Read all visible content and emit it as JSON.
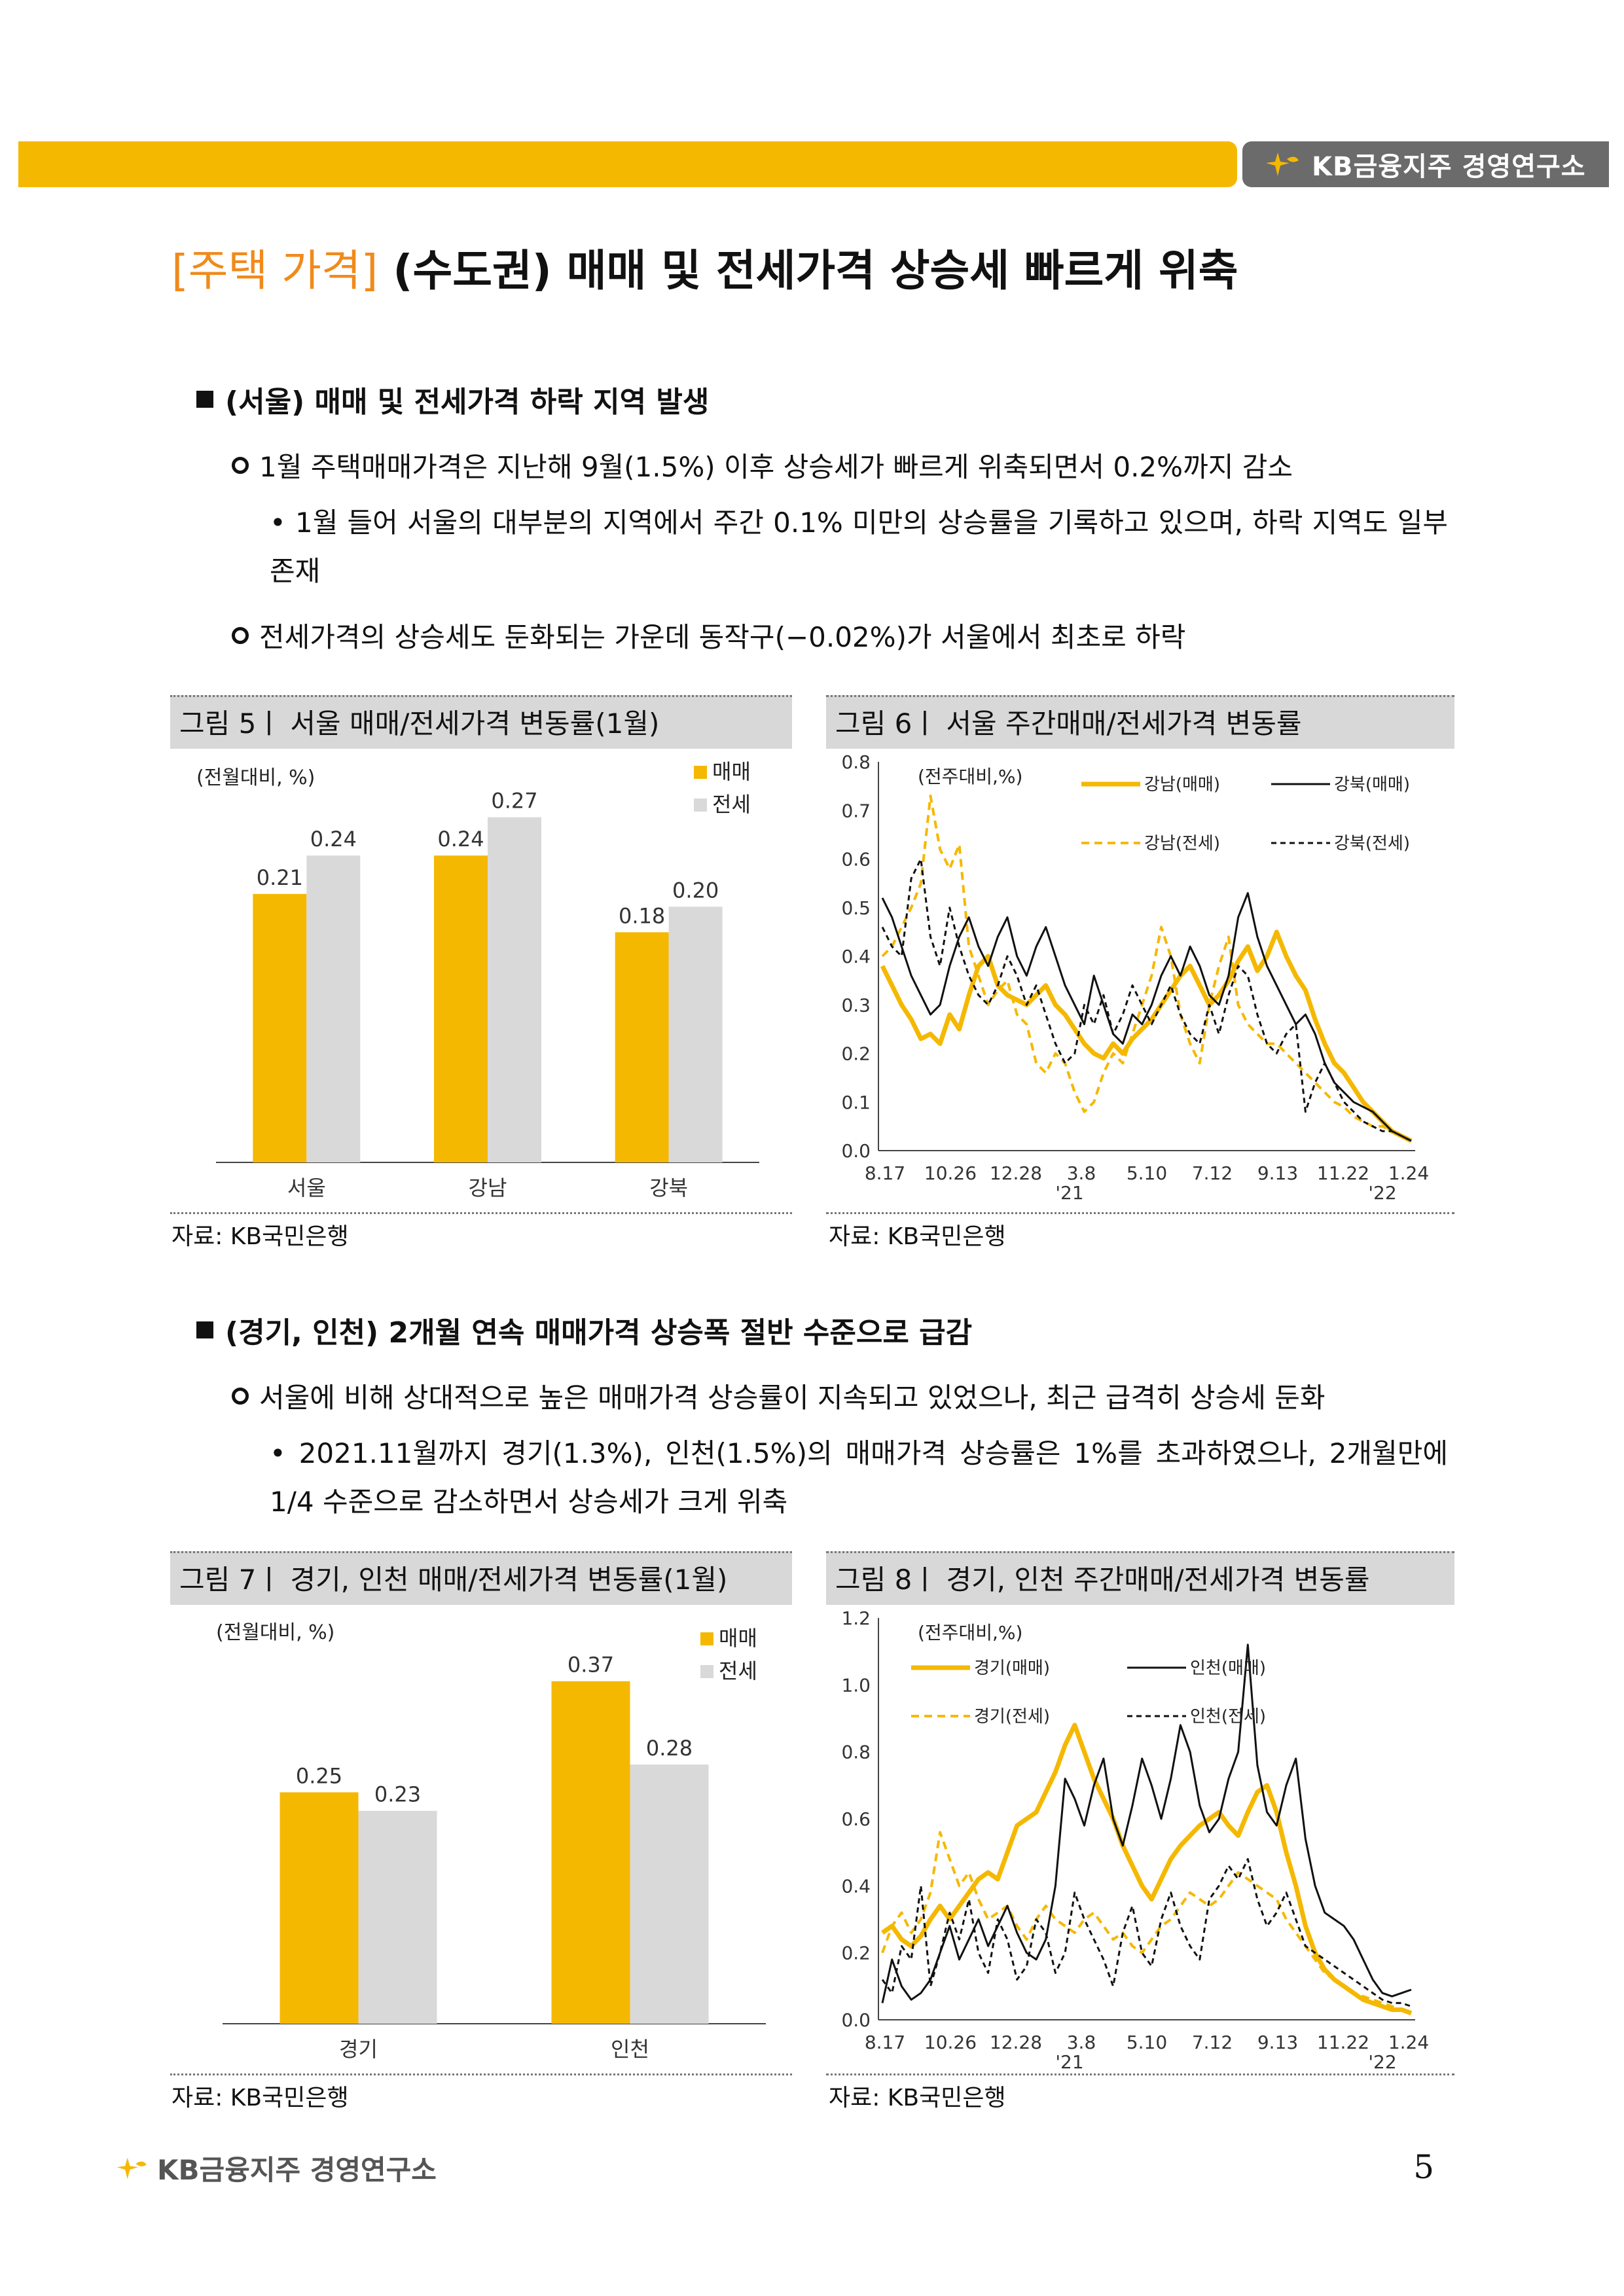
{
  "header": {
    "logo_text": "KB금융지주 경영연구소"
  },
  "title": {
    "tag": "[주택 가격]",
    "text": " (수도권) 매매 및 전세가격 상승세 빠르게 위축"
  },
  "section1": {
    "heading": "(서울) 매매 및 전세가격 하락 지역 발생",
    "point1": "1월 주택매매가격은 지난해 9월(1.5%) 이후 상승세가 빠르게 위축되면서 0.2%까지 감소",
    "bullet1": "• 1월 들어 서울의 대부분의 지역에서 주간 0.1% 미만의 상승률을 기록하고 있으며, 하락 지역도 일부 존재",
    "point2": "전세가격의 상승세도 둔화되는 가운데 동작구(−0.02%)가 서울에서 최초로 하락"
  },
  "section2": {
    "heading": "(경기, 인천) 2개월 연속 매매가격 상승폭 절반 수준으로 급감",
    "point1": "서울에 비해 상대적으로 높은 매매가격 상승률이 지속되고 있었으나, 최근 급격히 상승세 둔화",
    "bullet1": "• 2021.11월까지 경기(1.3%), 인천(1.5%)의 매매가격 상승률은 1%를 초과하였으나, 2개월만에 1/4 수준으로 감소하면서 상승세가 크게 위축"
  },
  "fig5": {
    "title": "그림 5ㅣ 서울 매매/전세가격 변동률(1월)",
    "source": "자료: KB국민은행"
  },
  "fig6": {
    "title": "그림 6ㅣ 서울 주간매매/전세가격 변동률",
    "source": "자료: KB국민은행"
  },
  "fig7": {
    "title": "그림 7ㅣ 경기, 인천 매매/전세가격 변동률(1월)",
    "source": "자료: KB국민은행"
  },
  "fig8": {
    "title": "그림 8ㅣ 경기, 인천 주간매매/전세가격 변동률",
    "source": "자료: KB국민은행"
  },
  "footer": {
    "logo_text": "KB금융지주 경영연구소",
    "page": "5"
  },
  "colors": {
    "accent": "#f5b800",
    "title_tag": "#f08a1c",
    "jeonse": "#d9d9d9"
  },
  "chart_data": [
    {
      "type": "bar",
      "unit_label": "(전월대비, %)",
      "categories": [
        "서울",
        "강남",
        "강북"
      ],
      "series": [
        {
          "name": "매매",
          "values": [
            0.21,
            0.24,
            0.18
          ],
          "labels": [
            "0.21",
            "0.24",
            "0.18"
          ]
        },
        {
          "name": "전세",
          "values": [
            0.24,
            0.27,
            0.2
          ],
          "labels": [
            "0.24",
            "0.27",
            "0.20"
          ]
        }
      ],
      "ylim": [
        0,
        0.3
      ],
      "legend": "top-right"
    },
    {
      "type": "line",
      "unit_label": "(전주대비,%)",
      "ylim": [
        0,
        0.8
      ],
      "yticks": [
        "0.0",
        "0.1",
        "0.2",
        "0.3",
        "0.4",
        "0.5",
        "0.6",
        "0.7",
        "0.8"
      ],
      "xticks": [
        "8.17",
        "10.26",
        "12.28",
        "3.8",
        "5.10",
        "7.12",
        "9.13",
        "11.22",
        "1.24"
      ],
      "year_marks": [
        "'21",
        "'22"
      ],
      "series": [
        {
          "name": "강남(매매)",
          "values": [
            0.38,
            0.34,
            0.3,
            0.27,
            0.23,
            0.24,
            0.22,
            0.28,
            0.25,
            0.32,
            0.38,
            0.4,
            0.34,
            0.32,
            0.31,
            0.3,
            0.32,
            0.34,
            0.3,
            0.28,
            0.25,
            0.22,
            0.2,
            0.19,
            0.22,
            0.2,
            0.23,
            0.25,
            0.27,
            0.3,
            0.33,
            0.36,
            0.38,
            0.34,
            0.3,
            0.32,
            0.35,
            0.39,
            0.42,
            0.37,
            0.4,
            0.45,
            0.4,
            0.36,
            0.33,
            0.27,
            0.22,
            0.18,
            0.16,
            0.13,
            0.1,
            0.08,
            0.06,
            0.04,
            0.03,
            0.02
          ]
        },
        {
          "name": "강북(매매)",
          "values": [
            0.52,
            0.48,
            0.42,
            0.36,
            0.32,
            0.28,
            0.3,
            0.38,
            0.44,
            0.48,
            0.42,
            0.38,
            0.44,
            0.48,
            0.4,
            0.36,
            0.42,
            0.46,
            0.4,
            0.34,
            0.3,
            0.26,
            0.36,
            0.3,
            0.24,
            0.22,
            0.28,
            0.26,
            0.3,
            0.36,
            0.4,
            0.36,
            0.42,
            0.38,
            0.32,
            0.3,
            0.36,
            0.48,
            0.53,
            0.44,
            0.38,
            0.34,
            0.3,
            0.26,
            0.28,
            0.24,
            0.18,
            0.14,
            0.12,
            0.1,
            0.09,
            0.08,
            0.06,
            0.04,
            0.03,
            0.02
          ]
        },
        {
          "name": "강남(전세)",
          "values": [
            0.4,
            0.42,
            0.46,
            0.5,
            0.55,
            0.73,
            0.62,
            0.58,
            0.63,
            0.42,
            0.36,
            0.3,
            0.33,
            0.35,
            0.28,
            0.26,
            0.18,
            0.16,
            0.2,
            0.18,
            0.12,
            0.08,
            0.1,
            0.16,
            0.2,
            0.18,
            0.24,
            0.3,
            0.36,
            0.46,
            0.4,
            0.28,
            0.22,
            0.18,
            0.3,
            0.38,
            0.44,
            0.3,
            0.26,
            0.24,
            0.22,
            0.22,
            0.2,
            0.18,
            0.16,
            0.14,
            0.12,
            0.1,
            0.09,
            0.07,
            0.06,
            0.05,
            0.05,
            0.04,
            0.03,
            0.02
          ]
        },
        {
          "name": "강북(전세)",
          "values": [
            0.46,
            0.42,
            0.4,
            0.56,
            0.6,
            0.44,
            0.38,
            0.5,
            0.42,
            0.36,
            0.32,
            0.3,
            0.34,
            0.4,
            0.36,
            0.3,
            0.34,
            0.28,
            0.22,
            0.18,
            0.2,
            0.3,
            0.26,
            0.32,
            0.24,
            0.28,
            0.34,
            0.3,
            0.26,
            0.3,
            0.34,
            0.28,
            0.24,
            0.22,
            0.3,
            0.24,
            0.32,
            0.38,
            0.36,
            0.28,
            0.22,
            0.2,
            0.24,
            0.26,
            0.08,
            0.14,
            0.18,
            0.14,
            0.1,
            0.08,
            0.06,
            0.05,
            0.04,
            0.04,
            0.03,
            0.02
          ]
        }
      ],
      "legend": "top"
    },
    {
      "type": "bar",
      "unit_label": "(전월대비, %)",
      "categories": [
        "경기",
        "인천"
      ],
      "series": [
        {
          "name": "매매",
          "values": [
            0.25,
            0.37
          ],
          "labels": [
            "0.25",
            "0.37"
          ]
        },
        {
          "name": "전세",
          "values": [
            0.23,
            0.28
          ],
          "labels": [
            "0.23",
            "0.28"
          ]
        }
      ],
      "ylim": [
        0,
        0.42
      ],
      "legend": "top-right"
    },
    {
      "type": "line",
      "unit_label": "(전주대비,%)",
      "ylim": [
        0,
        1.2
      ],
      "yticks": [
        "0.0",
        "0.2",
        "0.4",
        "0.6",
        "0.8",
        "1.0",
        "1.2"
      ],
      "xticks": [
        "8.17",
        "10.26",
        "12.28",
        "3.8",
        "5.10",
        "7.12",
        "9.13",
        "11.22",
        "1.24"
      ],
      "year_marks": [
        "'21",
        "'22"
      ],
      "series": [
        {
          "name": "경기(매매)",
          "values": [
            0.26,
            0.28,
            0.24,
            0.22,
            0.25,
            0.3,
            0.34,
            0.3,
            0.34,
            0.38,
            0.42,
            0.44,
            0.42,
            0.5,
            0.58,
            0.6,
            0.62,
            0.68,
            0.74,
            0.82,
            0.88,
            0.8,
            0.72,
            0.66,
            0.6,
            0.52,
            0.46,
            0.4,
            0.36,
            0.42,
            0.48,
            0.52,
            0.55,
            0.58,
            0.6,
            0.62,
            0.58,
            0.55,
            0.62,
            0.68,
            0.7,
            0.62,
            0.5,
            0.4,
            0.28,
            0.2,
            0.15,
            0.12,
            0.1,
            0.08,
            0.06,
            0.05,
            0.04,
            0.03,
            0.03,
            0.02
          ]
        },
        {
          "name": "인천(매매)",
          "values": [
            0.05,
            0.18,
            0.1,
            0.06,
            0.08,
            0.12,
            0.2,
            0.28,
            0.18,
            0.24,
            0.3,
            0.22,
            0.28,
            0.34,
            0.26,
            0.2,
            0.18,
            0.24,
            0.4,
            0.72,
            0.66,
            0.58,
            0.7,
            0.78,
            0.6,
            0.52,
            0.64,
            0.78,
            0.7,
            0.6,
            0.72,
            0.88,
            0.8,
            0.64,
            0.56,
            0.6,
            0.72,
            0.8,
            1.12,
            0.76,
            0.62,
            0.58,
            0.7,
            0.78,
            0.54,
            0.4,
            0.32,
            0.3,
            0.28,
            0.24,
            0.18,
            0.12,
            0.08,
            0.07,
            0.08,
            0.09
          ]
        },
        {
          "name": "경기(전세)",
          "values": [
            0.2,
            0.28,
            0.32,
            0.26,
            0.3,
            0.38,
            0.56,
            0.48,
            0.4,
            0.44,
            0.36,
            0.3,
            0.32,
            0.34,
            0.28,
            0.24,
            0.3,
            0.34,
            0.3,
            0.28,
            0.26,
            0.3,
            0.32,
            0.28,
            0.24,
            0.26,
            0.22,
            0.2,
            0.24,
            0.28,
            0.3,
            0.34,
            0.38,
            0.36,
            0.34,
            0.36,
            0.4,
            0.44,
            0.42,
            0.4,
            0.38,
            0.36,
            0.3,
            0.26,
            0.22,
            0.18,
            0.14,
            0.12,
            0.1,
            0.08,
            0.07,
            0.06,
            0.05,
            0.04,
            0.03,
            0.02
          ]
        },
        {
          "name": "인천(전세)",
          "values": [
            0.12,
            0.08,
            0.22,
            0.18,
            0.4,
            0.1,
            0.2,
            0.32,
            0.24,
            0.36,
            0.2,
            0.14,
            0.3,
            0.24,
            0.12,
            0.16,
            0.3,
            0.26,
            0.14,
            0.2,
            0.38,
            0.3,
            0.24,
            0.18,
            0.1,
            0.26,
            0.34,
            0.2,
            0.16,
            0.3,
            0.38,
            0.28,
            0.22,
            0.18,
            0.36,
            0.4,
            0.46,
            0.42,
            0.48,
            0.36,
            0.28,
            0.32,
            0.38,
            0.3,
            0.22,
            0.2,
            0.18,
            0.16,
            0.14,
            0.12,
            0.1,
            0.08,
            0.06,
            0.05,
            0.05,
            0.04
          ]
        }
      ],
      "legend": "top"
    }
  ]
}
